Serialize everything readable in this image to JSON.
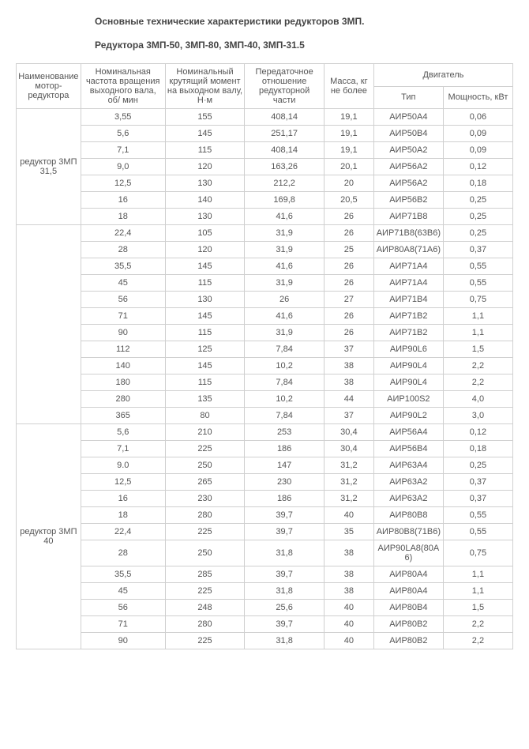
{
  "title": "Основные технические характеристики редукторов 3МП.",
  "subtitle": "Редуктора 3МП-50, 3МП-80, 3МП-40, 3МП-31.5",
  "columns": {
    "name": "Наименование мотор-редуктора",
    "freq": "Номинальная частота вращения выходного вала, об/ мин",
    "torque": "Номинальный крутящий момент на выходном валу, Н·м",
    "ratio": "Передаточное отношение редукторной части",
    "mass": "Масса, кг не более",
    "engine_group": "Двигатель",
    "engine_type": "Тип",
    "engine_power": "Мощность, кВт"
  },
  "groups": [
    {
      "name": "редуктор 3МП 31,5",
      "rows": [
        {
          "freq": "3,55",
          "torque": "155",
          "ratio": "408,14",
          "mass": "19,1",
          "type": "АИР50А4",
          "power": "0,06"
        },
        {
          "freq": "5,6",
          "torque": "145",
          "ratio": "251,17",
          "mass": "19,1",
          "type": "АИР50В4",
          "power": "0,09"
        },
        {
          "freq": "7,1",
          "torque": "115",
          "ratio": "408,14",
          "mass": "19,1",
          "type": "АИР50А2",
          "power": "0,09"
        },
        {
          "freq": "9,0",
          "torque": "120",
          "ratio": "163,26",
          "mass": "20,1",
          "type": "АИР56А2",
          "power": "0,12"
        },
        {
          "freq": "12,5",
          "torque": "130",
          "ratio": "212,2",
          "mass": "20",
          "type": "АИР56А2",
          "power": "0,18"
        },
        {
          "freq": "16",
          "torque": "140",
          "ratio": "169,8",
          "mass": "20,5",
          "type": "АИР56В2",
          "power": "0,25"
        },
        {
          "freq": "18",
          "torque": "130",
          "ratio": "41,6",
          "mass": "26",
          "type": "АИР71В8",
          "power": "0,25"
        }
      ]
    },
    {
      "name": "",
      "rows": [
        {
          "freq": "22,4",
          "torque": "105",
          "ratio": "31,9",
          "mass": "26",
          "type": "АИР71В8(63В6)",
          "power": "0,25"
        },
        {
          "freq": "28",
          "torque": "120",
          "ratio": "31,9",
          "mass": "25",
          "type": "АИР80А8(71А6)",
          "power": "0,37"
        },
        {
          "freq": "35,5",
          "torque": "145",
          "ratio": "41,6",
          "mass": "26",
          "type": "АИР71А4",
          "power": "0,55"
        },
        {
          "freq": "45",
          "torque": "115",
          "ratio": "31,9",
          "mass": "26",
          "type": "АИР71А4",
          "power": "0,55"
        },
        {
          "freq": "56",
          "torque": "130",
          "ratio": "26",
          "mass": "27",
          "type": "АИР71В4",
          "power": "0,75"
        },
        {
          "freq": "71",
          "torque": "145",
          "ratio": "41,6",
          "mass": "26",
          "type": "АИР71В2",
          "power": "1,1"
        },
        {
          "freq": "90",
          "torque": "115",
          "ratio": "31,9",
          "mass": "26",
          "type": "АИР71В2",
          "power": "1,1"
        },
        {
          "freq": "112",
          "torque": "125",
          "ratio": "7,84",
          "mass": "37",
          "type": "АИР90L6",
          "power": "1,5"
        },
        {
          "freq": "140",
          "torque": "145",
          "ratio": "10,2",
          "mass": "38",
          "type": "АИР90L4",
          "power": "2,2"
        },
        {
          "freq": "180",
          "torque": "115",
          "ratio": "7,84",
          "mass": "38",
          "type": "АИР90L4",
          "power": "2,2"
        },
        {
          "freq": "280",
          "torque": "135",
          "ratio": "10,2",
          "mass": "44",
          "type": "АИР100S2",
          "power": "4,0"
        },
        {
          "freq": "365",
          "torque": "80",
          "ratio": "7,84",
          "mass": "37",
          "type": "АИР90L2",
          "power": "3,0"
        }
      ]
    },
    {
      "name": "редуктор 3МП 40",
      "rows": [
        {
          "freq": "5,6",
          "torque": "210",
          "ratio": "253",
          "mass": "30,4",
          "type": "АИР56А4",
          "power": "0,12"
        },
        {
          "freq": "7,1",
          "torque": "225",
          "ratio": "186",
          "mass": "30,4",
          "type": "АИР56В4",
          "power": "0,18"
        },
        {
          "freq": "9.0",
          "torque": "250",
          "ratio": "147",
          "mass": "31,2",
          "type": "АИР63А4",
          "power": "0,25"
        },
        {
          "freq": "12,5",
          "torque": "265",
          "ratio": "230",
          "mass": "31,2",
          "type": "АИР63А2",
          "power": "0,37"
        },
        {
          "freq": "16",
          "torque": "230",
          "ratio": "186",
          "mass": "31,2",
          "type": "АИР63А2",
          "power": "0,37"
        },
        {
          "freq": "18",
          "torque": "280",
          "ratio": "39,7",
          "mass": "40",
          "type": "АИР80В8",
          "power": "0,55"
        },
        {
          "freq": "22,4",
          "torque": "225",
          "ratio": "39,7",
          "mass": "35",
          "type": "АИР80В8(71В6)",
          "power": "0,55"
        },
        {
          "freq": "28",
          "torque": "250",
          "ratio": "31,8",
          "mass": "38",
          "type": "АИР90LA8(80A6)",
          "power": "0,75"
        },
        {
          "freq": "35,5",
          "torque": "285",
          "ratio": "39,7",
          "mass": "38",
          "type": "АИР80А4",
          "power": "1,1"
        },
        {
          "freq": "45",
          "torque": "225",
          "ratio": "31,8",
          "mass": "38",
          "type": "АИР80А4",
          "power": "1,1"
        },
        {
          "freq": "56",
          "torque": "248",
          "ratio": "25,6",
          "mass": "40",
          "type": "АИР80В4",
          "power": "1,5"
        },
        {
          "freq": "71",
          "torque": "280",
          "ratio": "39,7",
          "mass": "40",
          "type": "АИР80В2",
          "power": "2,2"
        },
        {
          "freq": "90",
          "torque": "225",
          "ratio": "31,8",
          "mass": "40",
          "type": "АИР80В2",
          "power": "2,2"
        }
      ]
    }
  ]
}
